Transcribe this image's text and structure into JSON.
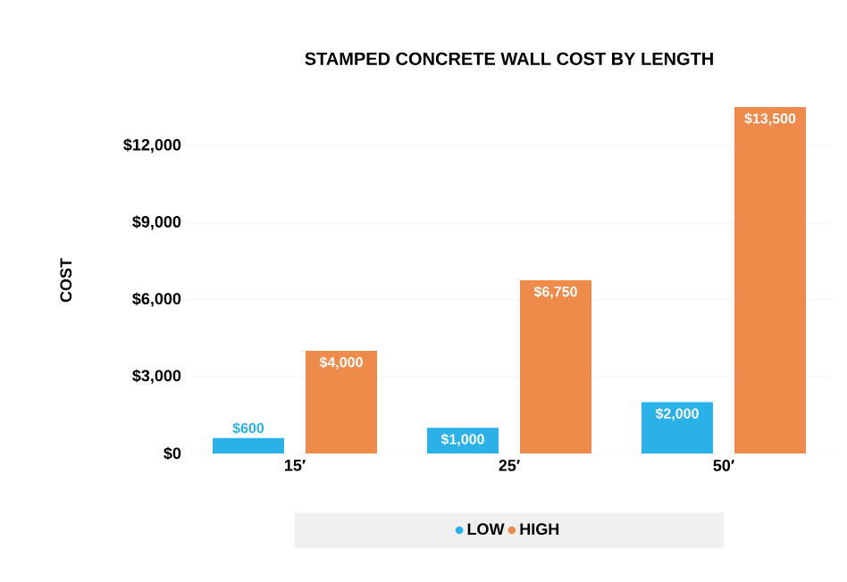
{
  "chart_data": {
    "type": "bar",
    "title": "STAMPED CONCRETE WALL COST BY LENGTH",
    "ylabel": "COST",
    "categories": [
      "15′",
      "25′",
      "50′"
    ],
    "series": [
      {
        "name": "LOW",
        "color": "#29b1e8",
        "values": [
          600,
          1000,
          2000
        ],
        "value_labels": [
          "$600",
          "$1,000",
          "$2,000"
        ]
      },
      {
        "name": "HIGH",
        "color": "#ee8a4a",
        "values": [
          4000,
          6750,
          13500
        ],
        "value_labels": [
          "$4,000",
          "$6,750",
          "$13,500"
        ]
      }
    ],
    "ylim": [
      0,
      13500
    ],
    "yticks": [
      {
        "value": 0,
        "label": "$0"
      },
      {
        "value": 3000,
        "label": "$3,000"
      },
      {
        "value": 6000,
        "label": "$6,000"
      },
      {
        "value": 9000,
        "label": "$9,000"
      },
      {
        "value": 12000,
        "label": "$12,000"
      }
    ],
    "grid": "y",
    "legend": "bottom"
  }
}
